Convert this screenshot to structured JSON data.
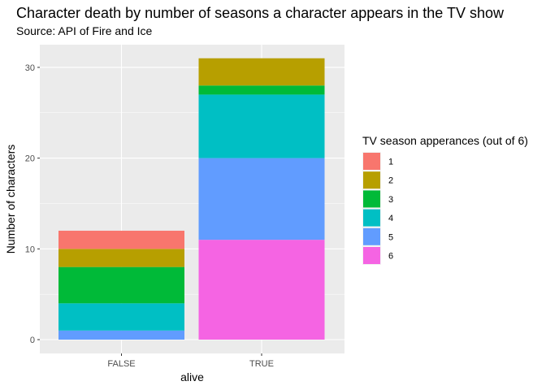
{
  "chart_data": {
    "type": "bar",
    "stacked": true,
    "title": "Character death by number of seasons a character appears in the TV show",
    "subtitle": "Source: API of Fire and Ice",
    "xlabel": "alive",
    "ylabel": "Number of characters",
    "categories": [
      "FALSE",
      "TRUE"
    ],
    "ylim": [
      0,
      33
    ],
    "yticks": [
      0,
      10,
      20,
      30
    ],
    "grid": true,
    "legend_title": "TV season apperances (out of 6)",
    "legend_position": "right",
    "series": [
      {
        "name": "1",
        "color": "#F8766D",
        "values": [
          2,
          0
        ]
      },
      {
        "name": "2",
        "color": "#B79F00",
        "values": [
          2,
          3
        ]
      },
      {
        "name": "3",
        "color": "#00BA38",
        "values": [
          4,
          1
        ]
      },
      {
        "name": "4",
        "color": "#00BFC4",
        "values": [
          3,
          7
        ]
      },
      {
        "name": "5",
        "color": "#619CFF",
        "values": [
          1,
          9
        ]
      },
      {
        "name": "6",
        "color": "#F564E3",
        "values": [
          0,
          11
        ]
      }
    ]
  }
}
